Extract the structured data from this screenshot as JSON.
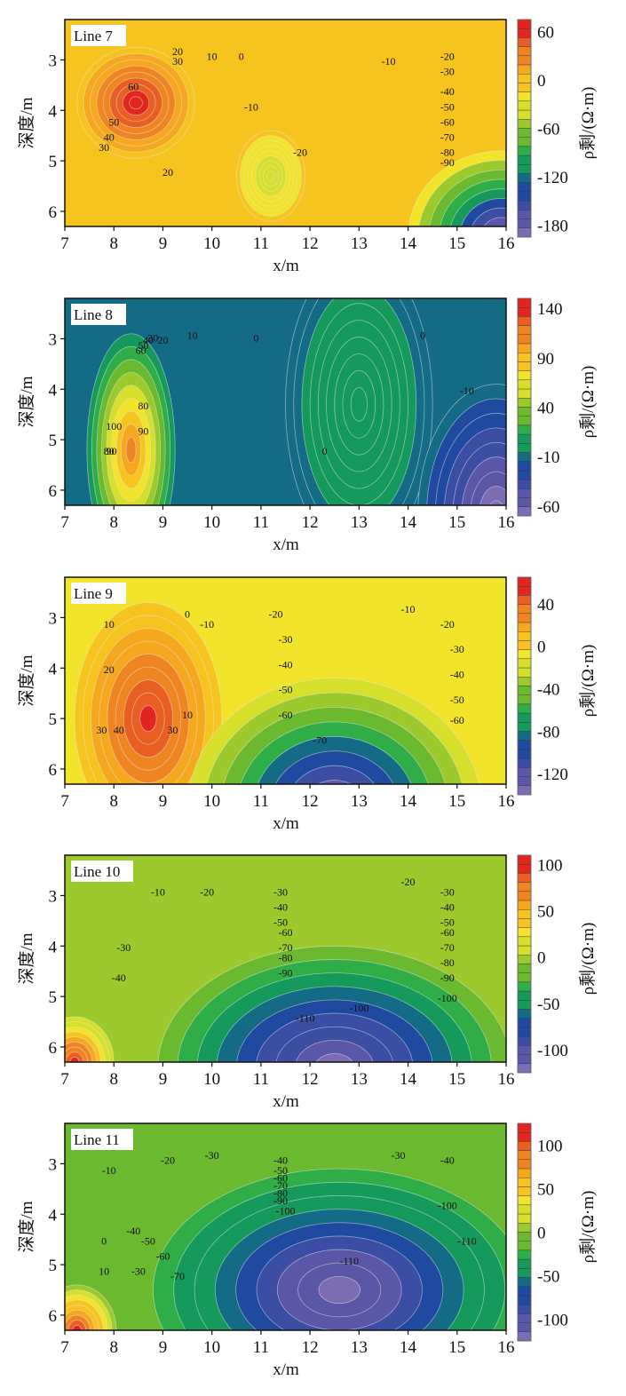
{
  "chart_data": [
    {
      "type": "heatmap",
      "subtype": "filled-contour",
      "title": "Line 7",
      "xlabel": "x/m",
      "ylabel": "深度/m",
      "x_ticks": [
        "7",
        "8",
        "9",
        "10",
        "11",
        "12",
        "13",
        "14",
        "15",
        "16"
      ],
      "y_ticks": [
        "3",
        "4",
        "5",
        "6"
      ],
      "xlim": [
        7,
        16
      ],
      "ylim": [
        2.2,
        6.3
      ],
      "colorbar": {
        "label": "ρ剩/(Ω·m)",
        "ticks": [
          "60",
          "0",
          "-60",
          "-120",
          "-180"
        ],
        "range": [
          -195,
          75
        ]
      },
      "contour_labels": [
        {
          "text": "20",
          "x": 9.3,
          "y": 2.9
        },
        {
          "text": "30",
          "x": 9.3,
          "y": 3.1
        },
        {
          "text": "10",
          "x": 10.0,
          "y": 3.0
        },
        {
          "text": "0",
          "x": 10.6,
          "y": 3.0
        },
        {
          "text": "60",
          "x": 8.4,
          "y": 3.6
        },
        {
          "text": "-10",
          "x": 10.8,
          "y": 4.0
        },
        {
          "text": "50",
          "x": 8.0,
          "y": 4.3
        },
        {
          "text": "40",
          "x": 7.9,
          "y": 4.6
        },
        {
          "text": "30",
          "x": 7.8,
          "y": 4.8
        },
        {
          "text": "20",
          "x": 9.1,
          "y": 5.3
        },
        {
          "text": "-20",
          "x": 11.8,
          "y": 4.9
        },
        {
          "text": "-10",
          "x": 13.6,
          "y": 3.1
        },
        {
          "text": "-20",
          "x": 14.8,
          "y": 3.0
        },
        {
          "text": "-30",
          "x": 14.8,
          "y": 3.3
        },
        {
          "text": "-40",
          "x": 14.8,
          "y": 3.7
        },
        {
          "text": "-50",
          "x": 14.8,
          "y": 4.0
        },
        {
          "text": "-60",
          "x": 14.8,
          "y": 4.3
        },
        {
          "text": "-70",
          "x": 14.8,
          "y": 4.6
        },
        {
          "text": "-80",
          "x": 14.8,
          "y": 4.9
        },
        {
          "text": "-90",
          "x": 14.8,
          "y": 5.1
        }
      ],
      "features": [
        {
          "kind": "high",
          "x": 8.45,
          "y": 3.85,
          "value": 70,
          "rx": 1.2,
          "ry": 1.1
        },
        {
          "kind": "low",
          "x": 11.2,
          "y": 5.3,
          "value": -40,
          "rx": 0.7,
          "ry": 0.9
        },
        {
          "kind": "low",
          "x": 15.9,
          "y": 6.5,
          "value": -190,
          "rx": 1.9,
          "ry": 1.7
        }
      ],
      "background_value": -5
    },
    {
      "type": "heatmap",
      "subtype": "filled-contour",
      "title": "Line 8",
      "xlabel": "x/m",
      "ylabel": "深度/m",
      "x_ticks": [
        "7",
        "8",
        "9",
        "10",
        "11",
        "12",
        "13",
        "14",
        "15",
        "16"
      ],
      "y_ticks": [
        "3",
        "4",
        "5",
        "6"
      ],
      "xlim": [
        7,
        16
      ],
      "ylim": [
        2.2,
        6.3
      ],
      "colorbar": {
        "label": "ρ剩/(Ω·m)",
        "ticks": [
          "140",
          "90",
          "40",
          "-10",
          "-60"
        ],
        "range": [
          -70,
          150
        ]
      },
      "contour_labels": [
        {
          "text": "10",
          "x": 9.6,
          "y": 3.0
        },
        {
          "text": "0",
          "x": 10.9,
          "y": 3.05
        },
        {
          "text": "20",
          "x": 9.0,
          "y": 3.1
        },
        {
          "text": "30",
          "x": 8.8,
          "y": 3.05
        },
        {
          "text": "40",
          "x": 8.7,
          "y": 3.1
        },
        {
          "text": "50",
          "x": 8.6,
          "y": 3.2
        },
        {
          "text": "60",
          "x": 8.55,
          "y": 3.3
        },
        {
          "text": "80",
          "x": 8.6,
          "y": 4.4
        },
        {
          "text": "90",
          "x": 8.6,
          "y": 4.9
        },
        {
          "text": "100",
          "x": 8.0,
          "y": 4.8
        },
        {
          "text": "80",
          "x": 7.9,
          "y": 5.3
        },
        {
          "text": "90",
          "x": 7.95,
          "y": 5.3
        },
        {
          "text": "0",
          "x": 12.3,
          "y": 5.3
        },
        {
          "text": "0",
          "x": 14.3,
          "y": 3.0
        },
        {
          "text": "-10",
          "x": 15.2,
          "y": 4.1
        }
      ],
      "features": [
        {
          "kind": "high",
          "x": 8.35,
          "y": 5.2,
          "value": 120,
          "rx": 0.9,
          "ry": 2.3
        },
        {
          "kind": "band",
          "x": 13.0,
          "y": 4.3,
          "value": 10,
          "rx": 1.5,
          "ry": 3.0
        },
        {
          "kind": "low",
          "x": 15.8,
          "y": 6.5,
          "value": -70,
          "rx": 1.6,
          "ry": 2.6
        }
      ],
      "background_value": -5
    },
    {
      "type": "heatmap",
      "subtype": "filled-contour",
      "title": "Line 9",
      "xlabel": "x/m",
      "ylabel": "深度/m",
      "x_ticks": [
        "7",
        "8",
        "9",
        "10",
        "11",
        "12",
        "13",
        "14",
        "15",
        "16"
      ],
      "y_ticks": [
        "3",
        "4",
        "5",
        "6"
      ],
      "xlim": [
        7,
        16
      ],
      "ylim": [
        2.2,
        6.3
      ],
      "colorbar": {
        "label": "ρ剩/(Ω·m)",
        "ticks": [
          "40",
          "0",
          "-40",
          "-80",
          "-120"
        ],
        "range": [
          -140,
          65
        ]
      },
      "contour_labels": [
        {
          "text": "10",
          "x": 7.9,
          "y": 3.2
        },
        {
          "text": "0",
          "x": 9.5,
          "y": 3.0
        },
        {
          "text": "-10",
          "x": 9.9,
          "y": 3.2
        },
        {
          "text": "-20",
          "x": 11.3,
          "y": 3.0
        },
        {
          "text": "-30",
          "x": 11.5,
          "y": 3.5
        },
        {
          "text": "-40",
          "x": 11.5,
          "y": 4.0
        },
        {
          "text": "-50",
          "x": 11.5,
          "y": 4.5
        },
        {
          "text": "-60",
          "x": 11.5,
          "y": 5.0
        },
        {
          "text": "-70",
          "x": 12.2,
          "y": 5.5
        },
        {
          "text": "20",
          "x": 7.9,
          "y": 4.1
        },
        {
          "text": "30",
          "x": 7.75,
          "y": 5.3
        },
        {
          "text": "40",
          "x": 8.1,
          "y": 5.3
        },
        {
          "text": "30",
          "x": 9.2,
          "y": 5.3
        },
        {
          "text": "10",
          "x": 9.5,
          "y": 5.0
        },
        {
          "text": "-10",
          "x": 14.0,
          "y": 2.9
        },
        {
          "text": "-20",
          "x": 14.8,
          "y": 3.2
        },
        {
          "text": "-30",
          "x": 15.0,
          "y": 3.7
        },
        {
          "text": "-40",
          "x": 15.0,
          "y": 4.2
        },
        {
          "text": "-50",
          "x": 15.0,
          "y": 4.7
        },
        {
          "text": "-60",
          "x": 15.0,
          "y": 5.1
        }
      ],
      "features": [
        {
          "kind": "high",
          "x": 8.7,
          "y": 5.0,
          "value": 55,
          "rx": 1.5,
          "ry": 2.3
        },
        {
          "kind": "low",
          "x": 12.5,
          "y": 6.8,
          "value": -135,
          "rx": 3.0,
          "ry": 2.6
        }
      ],
      "background_value": -5
    },
    {
      "type": "heatmap",
      "subtype": "filled-contour",
      "title": "Line 10",
      "xlabel": "x/m",
      "ylabel": "深度/m",
      "x_ticks": [
        "7",
        "8",
        "9",
        "10",
        "11",
        "12",
        "13",
        "14",
        "15",
        "16"
      ],
      "y_ticks": [
        "3",
        "4",
        "5",
        "6"
      ],
      "xlim": [
        7,
        16
      ],
      "ylim": [
        2.2,
        6.3
      ],
      "colorbar": {
        "label": "ρ剩/(Ω·m)",
        "ticks": [
          "100",
          "50",
          "0",
          "-50",
          "-100"
        ],
        "range": [
          -125,
          110
        ]
      },
      "contour_labels": [
        {
          "text": "-10",
          "x": 8.9,
          "y": 3.0
        },
        {
          "text": "-20",
          "x": 9.9,
          "y": 3.0
        },
        {
          "text": "-30",
          "x": 11.4,
          "y": 3.0
        },
        {
          "text": "-40",
          "x": 11.4,
          "y": 3.3
        },
        {
          "text": "-50",
          "x": 11.4,
          "y": 3.6
        },
        {
          "text": "-60",
          "x": 11.5,
          "y": 3.8
        },
        {
          "text": "-70",
          "x": 11.5,
          "y": 4.1
        },
        {
          "text": "-80",
          "x": 11.5,
          "y": 4.3
        },
        {
          "text": "-90",
          "x": 11.5,
          "y": 4.6
        },
        {
          "text": "-30",
          "x": 8.2,
          "y": 4.1
        },
        {
          "text": "-40",
          "x": 8.1,
          "y": 4.7
        },
        {
          "text": "-110",
          "x": 11.9,
          "y": 5.5
        },
        {
          "text": "-100",
          "x": 13.0,
          "y": 5.3
        },
        {
          "text": "-20",
          "x": 14.0,
          "y": 2.8
        },
        {
          "text": "-30",
          "x": 14.8,
          "y": 3.0
        },
        {
          "text": "-40",
          "x": 14.8,
          "y": 3.3
        },
        {
          "text": "-50",
          "x": 14.8,
          "y": 3.6
        },
        {
          "text": "-60",
          "x": 14.8,
          "y": 3.8
        },
        {
          "text": "-70",
          "x": 14.8,
          "y": 4.1
        },
        {
          "text": "-80",
          "x": 14.8,
          "y": 4.4
        },
        {
          "text": "-90",
          "x": 14.8,
          "y": 4.7
        },
        {
          "text": "-100",
          "x": 14.8,
          "y": 5.1
        }
      ],
      "features": [
        {
          "kind": "high",
          "x": 7.2,
          "y": 6.3,
          "value": 105,
          "rx": 0.8,
          "ry": 0.9
        },
        {
          "kind": "low",
          "x": 12.5,
          "y": 6.4,
          "value": -120,
          "rx": 3.6,
          "ry": 2.4
        }
      ],
      "background_value": -5
    },
    {
      "type": "heatmap",
      "subtype": "filled-contour",
      "title": "Line 11",
      "xlabel": "x/m",
      "ylabel": "深度/m",
      "x_ticks": [
        "7",
        "8",
        "9",
        "10",
        "11",
        "12",
        "13",
        "14",
        "15",
        "16"
      ],
      "y_ticks": [
        "3",
        "4",
        "5",
        "6"
      ],
      "xlim": [
        7,
        16
      ],
      "ylim": [
        2.2,
        6.3
      ],
      "colorbar": {
        "label": "ρ剩/(Ω·m)",
        "ticks": [
          "100",
          "50",
          "0",
          "-50",
          "-100"
        ],
        "range": [
          -125,
          125
        ]
      },
      "contour_labels": [
        {
          "text": "-10",
          "x": 7.9,
          "y": 3.2
        },
        {
          "text": "-20",
          "x": 9.1,
          "y": 3.0
        },
        {
          "text": "-30",
          "x": 10.0,
          "y": 2.9
        },
        {
          "text": "-40",
          "x": 11.4,
          "y": 3.0
        },
        {
          "text": "-50",
          "x": 11.4,
          "y": 3.2
        },
        {
          "text": "-60",
          "x": 11.4,
          "y": 3.35
        },
        {
          "text": "-70",
          "x": 11.4,
          "y": 3.5
        },
        {
          "text": "-80",
          "x": 11.4,
          "y": 3.65
        },
        {
          "text": "-90",
          "x": 11.4,
          "y": 3.8
        },
        {
          "text": "-100",
          "x": 11.5,
          "y": 4.0
        },
        {
          "text": "0",
          "x": 7.8,
          "y": 4.6
        },
        {
          "text": "10",
          "x": 7.8,
          "y": 5.2
        },
        {
          "text": "-40",
          "x": 8.4,
          "y": 4.4
        },
        {
          "text": "-50",
          "x": 8.7,
          "y": 4.6
        },
        {
          "text": "-30",
          "x": 8.5,
          "y": 5.2
        },
        {
          "text": "-60",
          "x": 9.0,
          "y": 4.9
        },
        {
          "text": "-70",
          "x": 9.3,
          "y": 5.3
        },
        {
          "text": "-110",
          "x": 12.8,
          "y": 5.0
        },
        {
          "text": "-30",
          "x": 13.8,
          "y": 2.9
        },
        {
          "text": "-40",
          "x": 14.8,
          "y": 3.0
        },
        {
          "text": "-100",
          "x": 14.8,
          "y": 3.9
        },
        {
          "text": "-110",
          "x": 15.2,
          "y": 4.6
        }
      ],
      "features": [
        {
          "kind": "high",
          "x": 7.25,
          "y": 6.3,
          "value": 120,
          "rx": 0.8,
          "ry": 0.9
        },
        {
          "kind": "low",
          "x": 12.6,
          "y": 5.5,
          "value": -120,
          "rx": 3.8,
          "ry": 2.4
        }
      ],
      "background_value": -10
    }
  ],
  "colors": {
    "palette": [
      "#7c6cb4",
      "#5b57a8",
      "#3b4ea3",
      "#1f4aa0",
      "#146b86",
      "#169a5c",
      "#2fae48",
      "#6bb92f",
      "#9cc92c",
      "#d6df2b",
      "#f2e42a",
      "#f6c31f",
      "#f5a71e",
      "#ef8520",
      "#e95e22",
      "#e2251f"
    ]
  }
}
